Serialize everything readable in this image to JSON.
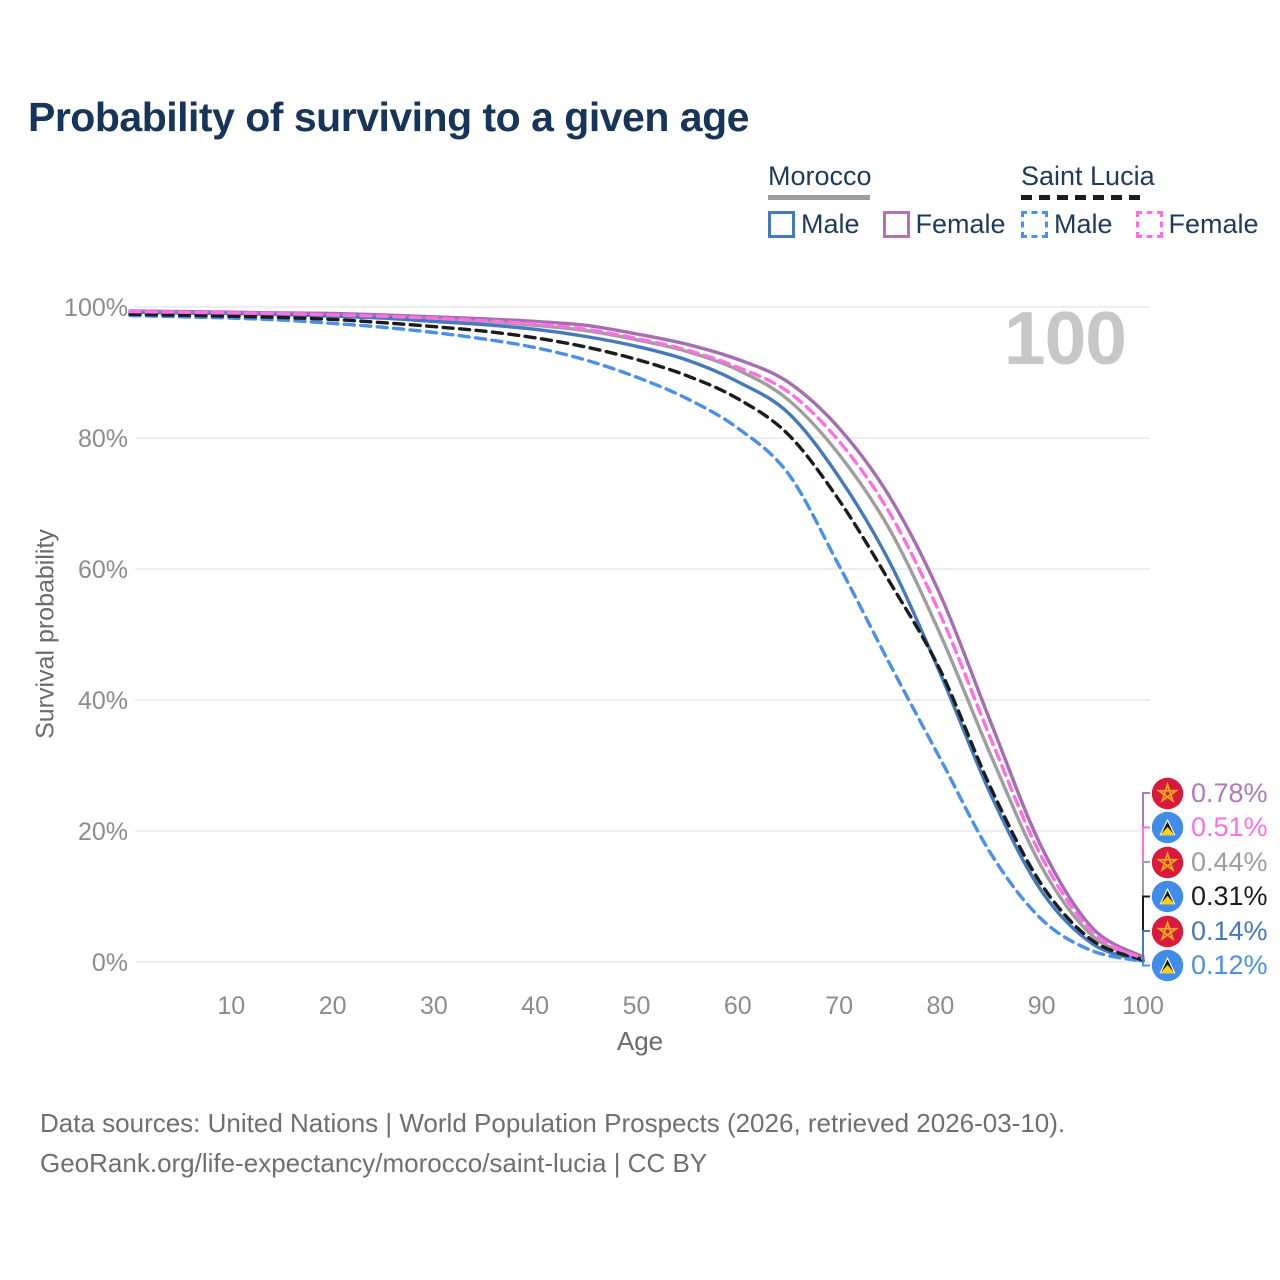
{
  "page": {
    "watermark_age": "100"
  },
  "legend": {
    "groups": [
      {
        "name": "Morocco",
        "line_style": "solid",
        "line_color": "#9e9e9e",
        "items": [
          {
            "label": "Male",
            "color": "#4579bd"
          },
          {
            "label": "Female",
            "color": "#b173b5"
          }
        ]
      },
      {
        "name": "Saint Lucia",
        "line_style": "dashed",
        "line_color": "#1c1c1c",
        "items": [
          {
            "label": "Male",
            "color": "#4a90ea"
          },
          {
            "label": "Female",
            "color": "#ff6fe3"
          }
        ]
      }
    ]
  },
  "chart_data": {
    "type": "line",
    "title": "Probability of surviving to a given age",
    "xlabel": "Age",
    "ylabel": "Survival probability",
    "xlim": [
      0,
      100
    ],
    "ylim": [
      0,
      100
    ],
    "grid": "horizontal",
    "x_ticks": [
      10,
      20,
      30,
      40,
      50,
      60,
      70,
      80,
      90,
      100
    ],
    "y_ticks": [
      0,
      20,
      40,
      60,
      80,
      100
    ],
    "y_tick_labels": [
      "0%",
      "20%",
      "40%",
      "60%",
      "80%",
      "100%"
    ],
    "legend_position": "top-right",
    "x": [
      0,
      5,
      10,
      15,
      20,
      25,
      30,
      35,
      40,
      45,
      50,
      55,
      60,
      65,
      70,
      75,
      80,
      85,
      90,
      95,
      100
    ],
    "series": [
      {
        "name": "Morocco Both sexes",
        "country": "Morocco",
        "sex": "Both",
        "color": "#9e9e9e",
        "dash": "solid",
        "values": [
          99.3,
          99.25,
          99.1,
          98.95,
          98.8,
          98.55,
          98.2,
          97.8,
          97.2,
          96.4,
          95.0,
          93.2,
          90.4,
          85.8,
          77.5,
          66.0,
          50.0,
          31.5,
          14.5,
          4.0,
          0.44
        ]
      },
      {
        "name": "Morocco Male",
        "country": "Morocco",
        "sex": "Male",
        "color": "#4579bd",
        "dash": "solid",
        "values": [
          99.2,
          99.1,
          99.0,
          98.85,
          98.6,
          98.3,
          97.8,
          97.3,
          96.6,
          95.5,
          94.0,
          91.9,
          88.6,
          83.8,
          74.0,
          61.0,
          44.0,
          25.5,
          10.8,
          2.8,
          0.14
        ]
      },
      {
        "name": "Morocco Female",
        "country": "Morocco",
        "sex": "Female",
        "color": "#a66db0",
        "dash": "solid",
        "values": [
          99.4,
          99.3,
          99.2,
          99.1,
          99.0,
          98.8,
          98.5,
          98.2,
          97.8,
          97.2,
          95.9,
          94.3,
          92.0,
          88.5,
          81.5,
          71.0,
          56.0,
          36.5,
          17.5,
          5.2,
          0.78
        ]
      },
      {
        "name": "Saint Lucia Male",
        "country": "Saint Lucia",
        "sex": "Male",
        "color": "#4a90ea",
        "dash": "dashed",
        "values": [
          98.7,
          98.5,
          98.3,
          98.0,
          97.5,
          96.9,
          96.1,
          95.1,
          93.8,
          91.9,
          89.3,
          86.0,
          81.5,
          74.5,
          60.5,
          45.5,
          31.0,
          16.5,
          6.5,
          1.7,
          0.12
        ]
      },
      {
        "name": "Saint Lucia Both sexes",
        "country": "Saint Lucia",
        "sex": "Both",
        "color": "#1c1c1c",
        "dash": "dashed",
        "values": [
          98.9,
          98.75,
          98.6,
          98.4,
          98.1,
          97.6,
          97.0,
          96.3,
          95.3,
          93.9,
          92.0,
          89.5,
          86.0,
          80.5,
          70.5,
          58.0,
          44.5,
          26.5,
          11.8,
          3.3,
          0.31
        ]
      },
      {
        "name": "Saint Lucia Female",
        "country": "Saint Lucia",
        "sex": "Female",
        "color": "#ff6fe3",
        "dash": "dashed",
        "values": [
          99.3,
          99.2,
          99.1,
          99.0,
          98.8,
          98.6,
          98.3,
          97.9,
          97.4,
          96.6,
          95.2,
          93.4,
          90.8,
          87.0,
          79.5,
          68.5,
          53.0,
          34.0,
          16.0,
          4.6,
          0.51
        ]
      }
    ],
    "end_labels": [
      {
        "text": "0.78%",
        "value": 0.78,
        "flag": "morocco",
        "series": "Morocco Female",
        "color": "#b07ab8"
      },
      {
        "text": "0.51%",
        "value": 0.51,
        "flag": "saint-lucia",
        "series": "Saint Lucia Female",
        "color": "#ff6fe3"
      },
      {
        "text": "0.44%",
        "value": 0.44,
        "flag": "morocco",
        "series": "Morocco Both sexes",
        "color": "#9e9e9e"
      },
      {
        "text": "0.31%",
        "value": 0.31,
        "flag": "saint-lucia",
        "series": "Saint Lucia Both sexes",
        "color": "#1c1c1c"
      },
      {
        "text": "0.14%",
        "value": 0.14,
        "flag": "morocco",
        "series": "Morocco Male",
        "color": "#4579bd"
      },
      {
        "text": "0.12%",
        "value": 0.12,
        "flag": "saint-lucia",
        "series": "Saint Lucia Male",
        "color": "#4a90ea"
      }
    ]
  },
  "footer": {
    "line1": "Data sources: United Nations | World Population Prospects (2026, retrieved 2026-03-10).",
    "line2": "GeoRank.org/life-expectancy/morocco/saint-lucia | CC BY"
  }
}
